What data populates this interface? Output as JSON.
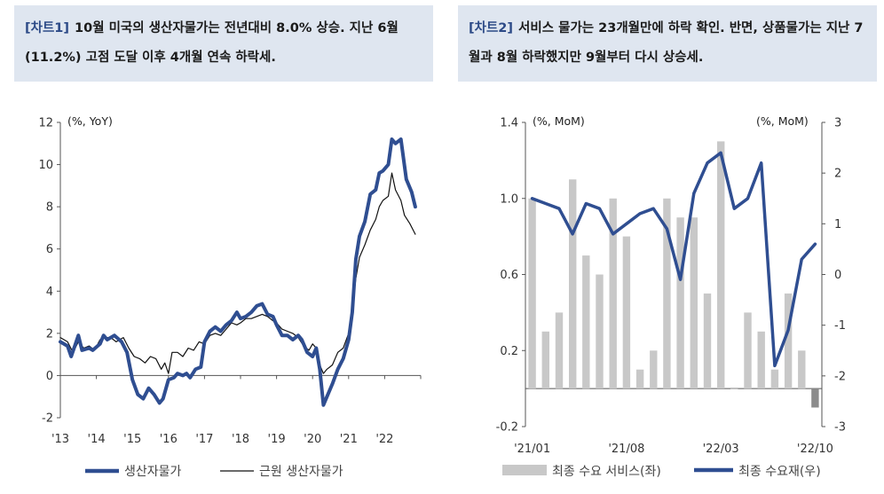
{
  "chart_data": [
    {
      "type": "line",
      "tag": "[차트1]",
      "title": "10월 미국의 생산자물가는 전년대비 8.0% 상승. 지난 6월(11.2%) 고점 도달 이후 4개월 연속 하락세.",
      "unit_label": "(%, YoY)",
      "ylim": [
        -2,
        12
      ],
      "yticks": [
        "12",
        "10",
        "8",
        "6",
        "4",
        "2",
        "0",
        "-2"
      ],
      "xticks": [
        "'13",
        "'14",
        "'15",
        "'16",
        "'17",
        "'18",
        "'19",
        "'20",
        "'21",
        "'22"
      ],
      "series": [
        {
          "name": "생산자물가",
          "color": "#2f4e91",
          "points": [
            [
              2013.0,
              1.6
            ],
            [
              2013.2,
              1.4
            ],
            [
              2013.3,
              0.9
            ],
            [
              2013.5,
              1.9
            ],
            [
              2013.6,
              1.2
            ],
            [
              2013.8,
              1.3
            ],
            [
              2013.9,
              1.2
            ],
            [
              2014.1,
              1.5
            ],
            [
              2014.2,
              1.9
            ],
            [
              2014.3,
              1.7
            ],
            [
              2014.5,
              1.9
            ],
            [
              2014.7,
              1.6
            ],
            [
              2014.85,
              1.1
            ],
            [
              2015.0,
              -0.2
            ],
            [
              2015.15,
              -0.9
            ],
            [
              2015.3,
              -1.1
            ],
            [
              2015.45,
              -0.6
            ],
            [
              2015.6,
              -0.9
            ],
            [
              2015.75,
              -1.3
            ],
            [
              2015.85,
              -1.1
            ],
            [
              2016.0,
              -0.2
            ],
            [
              2016.15,
              -0.1
            ],
            [
              2016.25,
              0.1
            ],
            [
              2016.4,
              0.0
            ],
            [
              2016.5,
              0.1
            ],
            [
              2016.6,
              -0.1
            ],
            [
              2016.75,
              0.3
            ],
            [
              2016.9,
              0.4
            ],
            [
              2017.0,
              1.6
            ],
            [
              2017.15,
              2.1
            ],
            [
              2017.3,
              2.3
            ],
            [
              2017.45,
              2.1
            ],
            [
              2017.6,
              2.4
            ],
            [
              2017.75,
              2.6
            ],
            [
              2017.9,
              3.0
            ],
            [
              2018.0,
              2.7
            ],
            [
              2018.15,
              2.8
            ],
            [
              2018.3,
              3.0
            ],
            [
              2018.45,
              3.3
            ],
            [
              2018.6,
              3.4
            ],
            [
              2018.75,
              2.9
            ],
            [
              2018.9,
              2.8
            ],
            [
              2019.0,
              2.4
            ],
            [
              2019.15,
              1.9
            ],
            [
              2019.3,
              1.9
            ],
            [
              2019.45,
              1.7
            ],
            [
              2019.6,
              1.9
            ],
            [
              2019.7,
              1.7
            ],
            [
              2019.85,
              1.1
            ],
            [
              2020.0,
              0.9
            ],
            [
              2020.1,
              1.3
            ],
            [
              2020.2,
              0.3
            ],
            [
              2020.3,
              -1.4
            ],
            [
              2020.4,
              -1.0
            ],
            [
              2020.55,
              -0.4
            ],
            [
              2020.7,
              0.3
            ],
            [
              2020.85,
              0.8
            ],
            [
              2021.0,
              1.7
            ],
            [
              2021.1,
              3.0
            ],
            [
              2021.2,
              5.5
            ],
            [
              2021.3,
              6.6
            ],
            [
              2021.45,
              7.3
            ],
            [
              2021.6,
              8.6
            ],
            [
              2021.75,
              8.8
            ],
            [
              2021.85,
              9.6
            ],
            [
              2021.95,
              9.7
            ],
            [
              2022.1,
              10.0
            ],
            [
              2022.2,
              11.2
            ],
            [
              2022.3,
              11.0
            ],
            [
              2022.45,
              11.2
            ],
            [
              2022.6,
              9.3
            ],
            [
              2022.75,
              8.7
            ],
            [
              2022.85,
              8.0
            ]
          ]
        },
        {
          "name": "근원 생산자물가",
          "color": "#111111",
          "points": [
            [
              2013.0,
              1.8
            ],
            [
              2013.2,
              1.6
            ],
            [
              2013.35,
              1.1
            ],
            [
              2013.5,
              1.6
            ],
            [
              2013.65,
              1.3
            ],
            [
              2013.8,
              1.4
            ],
            [
              2013.95,
              1.2
            ],
            [
              2014.1,
              1.7
            ],
            [
              2014.25,
              1.8
            ],
            [
              2014.4,
              1.8
            ],
            [
              2014.55,
              1.6
            ],
            [
              2014.75,
              1.8
            ],
            [
              2014.9,
              1.3
            ],
            [
              2015.05,
              0.9
            ],
            [
              2015.2,
              0.8
            ],
            [
              2015.35,
              0.6
            ],
            [
              2015.5,
              0.9
            ],
            [
              2015.65,
              0.8
            ],
            [
              2015.8,
              0.3
            ],
            [
              2015.9,
              0.6
            ],
            [
              2016.0,
              0.1
            ],
            [
              2016.1,
              1.1
            ],
            [
              2016.25,
              1.1
            ],
            [
              2016.4,
              0.9
            ],
            [
              2016.55,
              1.3
            ],
            [
              2016.7,
              1.2
            ],
            [
              2016.85,
              1.6
            ],
            [
              2017.0,
              1.5
            ],
            [
              2017.15,
              1.9
            ],
            [
              2017.3,
              2.0
            ],
            [
              2017.45,
              1.9
            ],
            [
              2017.6,
              2.2
            ],
            [
              2017.75,
              2.5
            ],
            [
              2017.9,
              2.4
            ],
            [
              2018.0,
              2.5
            ],
            [
              2018.15,
              2.7
            ],
            [
              2018.3,
              2.7
            ],
            [
              2018.45,
              2.8
            ],
            [
              2018.6,
              2.9
            ],
            [
              2018.75,
              2.8
            ],
            [
              2018.9,
              2.6
            ],
            [
              2019.0,
              2.5
            ],
            [
              2019.15,
              2.2
            ],
            [
              2019.3,
              2.1
            ],
            [
              2019.45,
              2.0
            ],
            [
              2019.6,
              1.8
            ],
            [
              2019.75,
              1.4
            ],
            [
              2019.9,
              1.2
            ],
            [
              2020.0,
              1.5
            ],
            [
              2020.1,
              1.3
            ],
            [
              2020.2,
              0.5
            ],
            [
              2020.3,
              0.1
            ],
            [
              2020.4,
              0.3
            ],
            [
              2020.55,
              0.5
            ],
            [
              2020.7,
              1.1
            ],
            [
              2020.85,
              1.3
            ],
            [
              2021.0,
              2.0
            ],
            [
              2021.1,
              3.1
            ],
            [
              2021.2,
              4.6
            ],
            [
              2021.3,
              5.6
            ],
            [
              2021.45,
              6.2
            ],
            [
              2021.6,
              6.9
            ],
            [
              2021.75,
              7.4
            ],
            [
              2021.85,
              8.0
            ],
            [
              2021.95,
              8.3
            ],
            [
              2022.1,
              8.5
            ],
            [
              2022.2,
              9.6
            ],
            [
              2022.3,
              8.8
            ],
            [
              2022.45,
              8.3
            ],
            [
              2022.55,
              7.6
            ],
            [
              2022.7,
              7.2
            ],
            [
              2022.85,
              6.7
            ]
          ]
        }
      ],
      "legend": [
        "생산자물가",
        "근원 생산자물가"
      ]
    },
    {
      "type": "bar+line",
      "tag": "[차트2]",
      "title": "서비스 물가는 23개월만에 하락 확인. 반면, 상품물가는 지난 7월과 8월 하락했지만 9월부터 다시 상승세.",
      "unit_left": "(%, MoM)",
      "unit_right": "(%, MoM)",
      "ylim_left": [
        -0.2,
        1.4
      ],
      "ylim_right": [
        -3,
        3
      ],
      "yticks_left": [
        "1.4",
        "1.0",
        "0.6",
        "0.2",
        "-0.2"
      ],
      "yticks_right": [
        "3",
        "2",
        "1",
        "0",
        "-1",
        "-2",
        "-3"
      ],
      "xticks": [
        "'21/01",
        "'21/08",
        "'22/03",
        "'22/10"
      ],
      "bar_series": {
        "name": "최종 수요 서비스(좌)",
        "color": "#c8c8c8",
        "last_color": "#8c8c8c",
        "values": [
          1.0,
          0.3,
          0.4,
          1.1,
          0.7,
          0.6,
          1.0,
          0.8,
          0.1,
          0.2,
          1.0,
          0.9,
          0.9,
          0.5,
          1.3,
          0.0,
          0.4,
          0.3,
          0.1,
          0.5,
          0.2,
          -0.1
        ]
      },
      "line_series": {
        "name": "최종 수요재(우)",
        "color": "#2f4e91",
        "values": [
          1.5,
          1.4,
          1.3,
          0.8,
          1.4,
          1.3,
          0.8,
          1.0,
          1.2,
          1.3,
          0.9,
          -0.1,
          1.6,
          2.2,
          2.4,
          1.3,
          1.5,
          2.2,
          -1.8,
          -1.1,
          0.3,
          0.6
        ]
      },
      "legend": [
        "최종 수요 서비스(좌)",
        "최종 수요재(우)"
      ]
    }
  ]
}
